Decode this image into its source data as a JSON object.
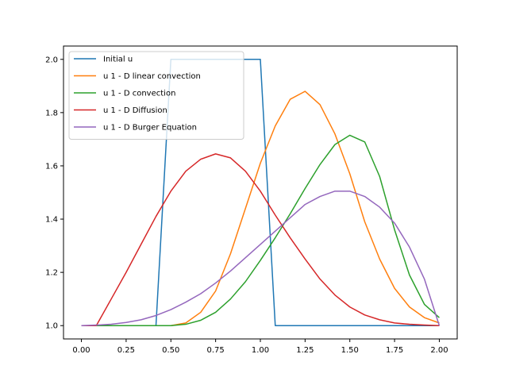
{
  "chart_data": {
    "type": "line",
    "title": "",
    "xlabel": "",
    "ylabel": "",
    "xlim": [
      -0.1,
      2.1
    ],
    "ylim": [
      0.95,
      2.05
    ],
    "x_ticks": [
      0.0,
      0.25,
      0.5,
      0.75,
      1.0,
      1.25,
      1.5,
      1.75,
      2.0
    ],
    "x_tick_labels": [
      "0.00",
      "0.25",
      "0.50",
      "0.75",
      "1.00",
      "1.25",
      "1.50",
      "1.75",
      "2.00"
    ],
    "y_ticks": [
      1.0,
      1.2,
      1.4,
      1.6,
      1.8,
      2.0
    ],
    "y_tick_labels": [
      "1.0",
      "1.2",
      "1.4",
      "1.6",
      "1.8",
      "2.0"
    ],
    "grid": false,
    "legend_position": "top-left",
    "x": [
      0.0,
      0.0833,
      0.1667,
      0.25,
      0.3333,
      0.4167,
      0.5,
      0.5833,
      0.6667,
      0.75,
      0.8333,
      0.9167,
      1.0,
      1.0833,
      1.1667,
      1.25,
      1.3333,
      1.4167,
      1.5,
      1.5833,
      1.6667,
      1.75,
      1.8333,
      1.9167,
      2.0
    ],
    "series": [
      {
        "name": "Initial u",
        "color": "#1f77b4",
        "values": [
          1.0,
          1.0,
          1.0,
          1.0,
          1.0,
          1.0,
          2.0,
          2.0,
          2.0,
          2.0,
          2.0,
          2.0,
          2.0,
          1.0,
          1.0,
          1.0,
          1.0,
          1.0,
          1.0,
          1.0,
          1.0,
          1.0,
          1.0,
          1.0,
          1.0
        ]
      },
      {
        "name": "u 1 - D linear convection",
        "color": "#ff7f0e",
        "values": [
          1.0,
          1.0,
          1.0,
          1.0,
          1.0,
          1.0,
          1.0,
          1.01,
          1.05,
          1.13,
          1.27,
          1.44,
          1.61,
          1.75,
          1.85,
          1.88,
          1.83,
          1.72,
          1.57,
          1.39,
          1.25,
          1.14,
          1.07,
          1.03,
          1.01
        ]
      },
      {
        "name": "u 1 - D convection",
        "color": "#2ca02c",
        "values": [
          1.0,
          1.0,
          1.0,
          1.0,
          1.0,
          1.0,
          1.0,
          1.005,
          1.02,
          1.05,
          1.1,
          1.165,
          1.245,
          1.33,
          1.42,
          1.515,
          1.605,
          1.68,
          1.715,
          1.69,
          1.56,
          1.36,
          1.19,
          1.08,
          1.03
        ]
      },
      {
        "name": "u 1 - D Diffusion",
        "color": "#d62728",
        "values": [
          1.0,
          1.0,
          1.1,
          1.2,
          1.305,
          1.41,
          1.505,
          1.58,
          1.625,
          1.645,
          1.63,
          1.58,
          1.505,
          1.415,
          1.33,
          1.25,
          1.175,
          1.115,
          1.07,
          1.04,
          1.022,
          1.01,
          1.005,
          1.002,
          1.0
        ]
      },
      {
        "name": "u 1 - D Burger Equation",
        "color": "#9467bd",
        "values": [
          1.0,
          1.002,
          1.005,
          1.012,
          1.022,
          1.038,
          1.06,
          1.088,
          1.12,
          1.16,
          1.205,
          1.255,
          1.305,
          1.355,
          1.405,
          1.455,
          1.485,
          1.505,
          1.505,
          1.485,
          1.445,
          1.385,
          1.295,
          1.175,
          1.0
        ]
      }
    ]
  }
}
